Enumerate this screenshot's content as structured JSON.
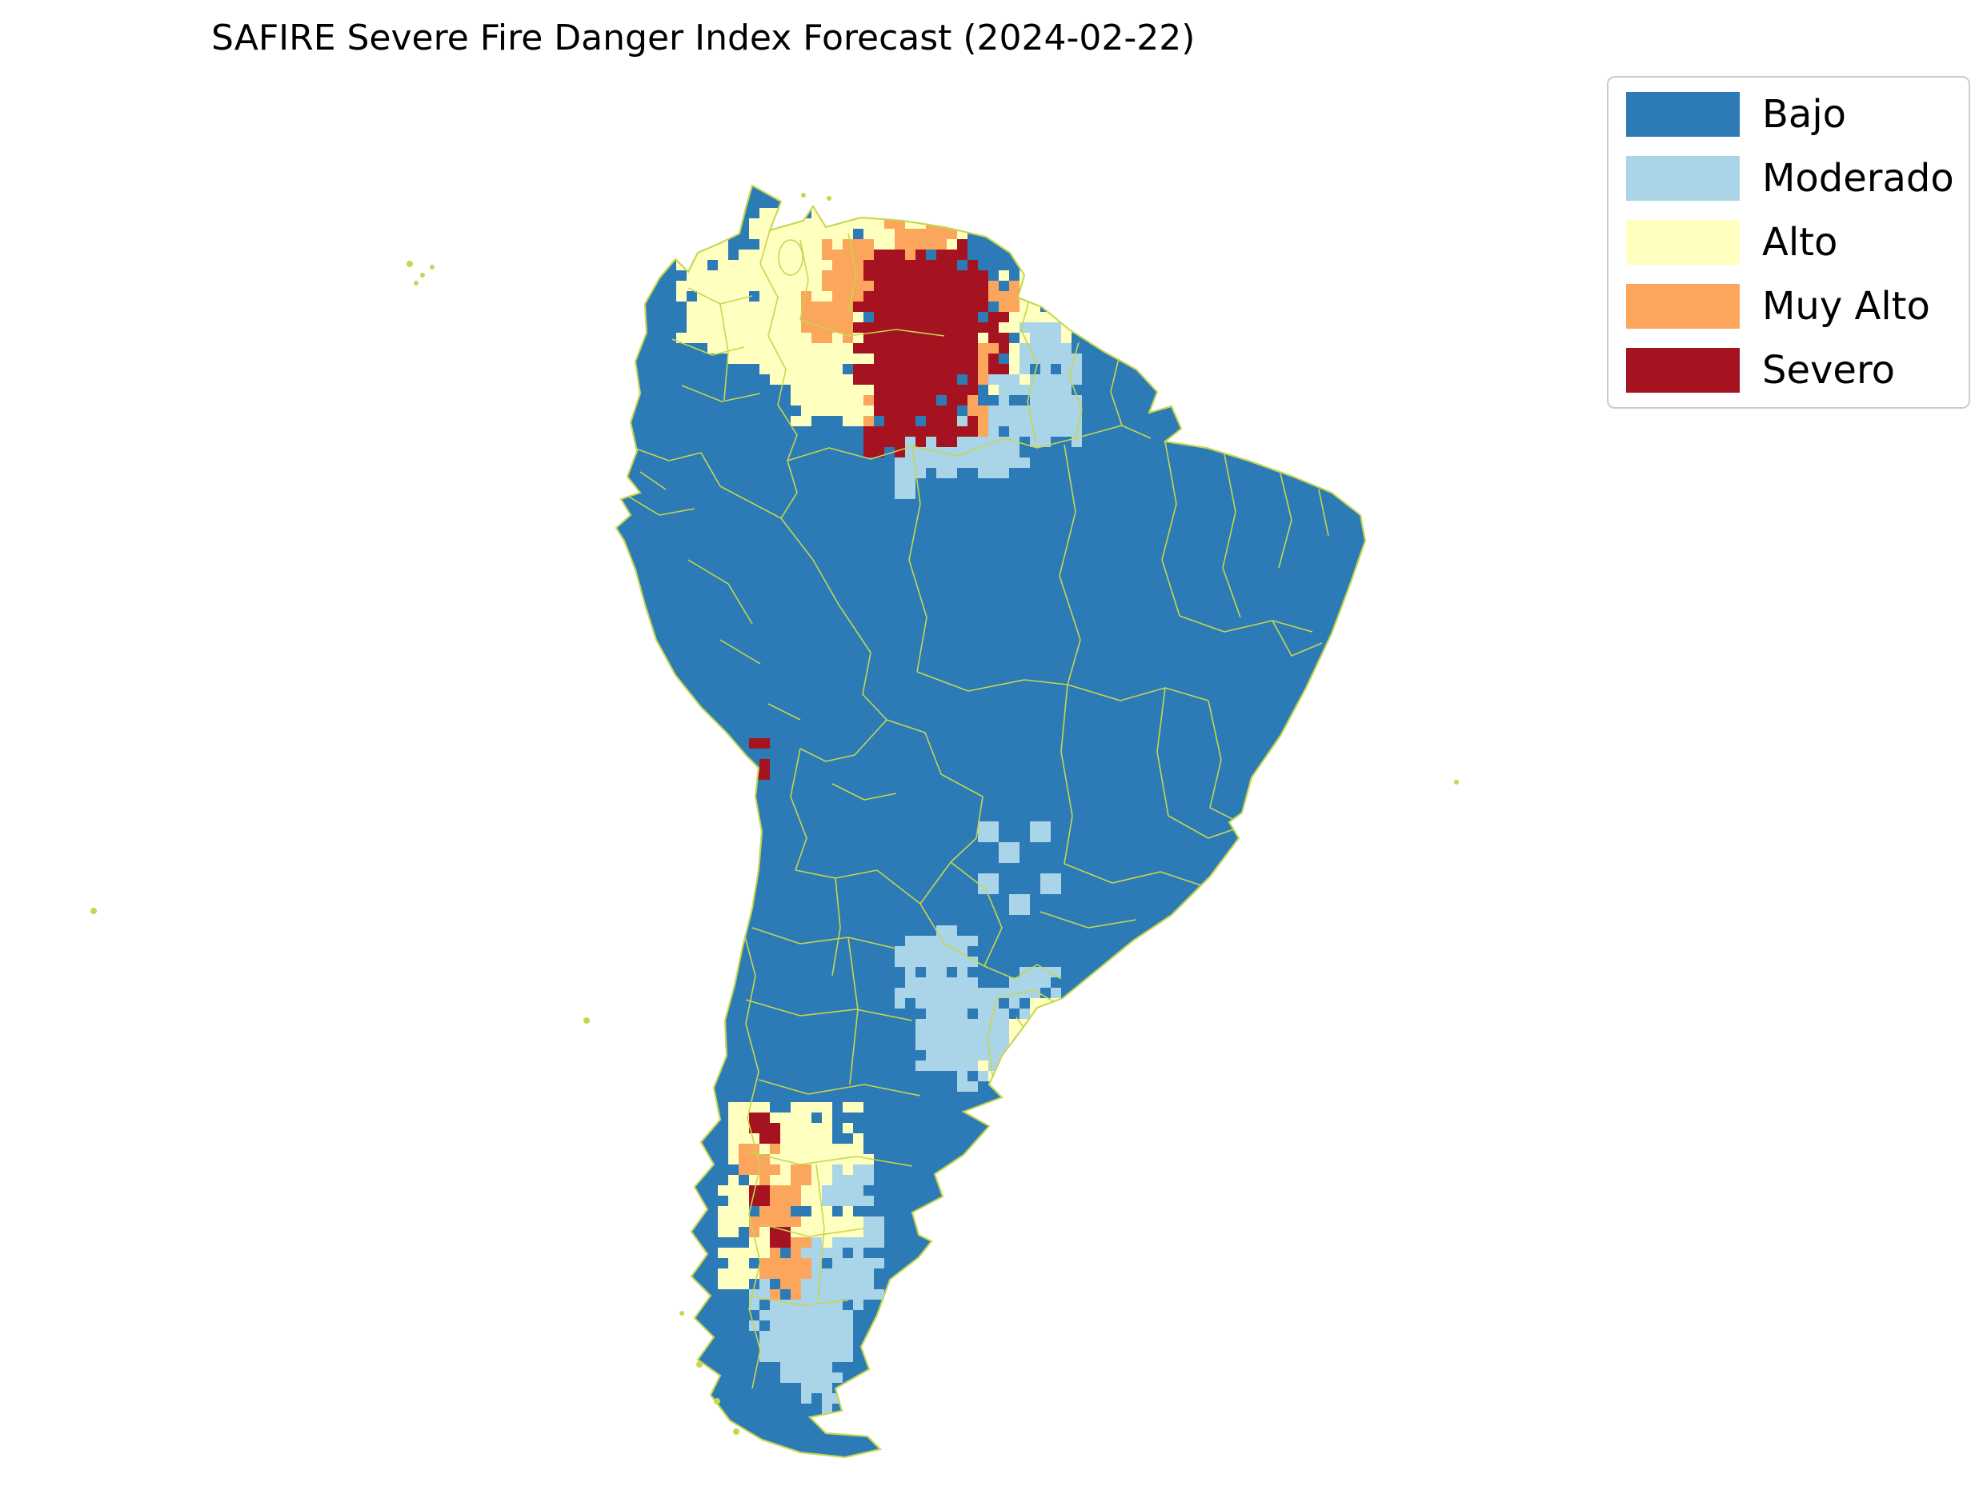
{
  "title": "SAFIRE Severe Fire Danger Index Forecast (2024-02-22)",
  "legend": {
    "items": [
      {
        "key": "bajo",
        "label": "Bajo",
        "color": "#2c7bb6"
      },
      {
        "key": "moderado",
        "label": "Moderado",
        "color": "#aad5e8"
      },
      {
        "key": "alto",
        "label": "Alto",
        "color": "#ffffbf"
      },
      {
        "key": "muy_alto",
        "label": "Muy Alto",
        "color": "#fca55d"
      },
      {
        "key": "severo",
        "label": "Severo",
        "color": "#a61320"
      }
    ]
  },
  "map": {
    "background": "#ffffff",
    "land_color": "#2c7bb6",
    "border_color": "#c6d64f",
    "cell_size": 13,
    "zones": [
      {
        "level": "alto",
        "name": "alto-north-venezuela",
        "rects": [
          [
            884,
            300,
            120,
            150
          ],
          [
            940,
            268,
            180,
            100
          ],
          [
            952,
            352,
            160,
            120
          ],
          [
            988,
            452,
            120,
            70
          ],
          [
            1096,
            270,
            110,
            50
          ],
          [
            848,
            330,
            50,
            90
          ],
          [
            1232,
            396,
            60,
            120
          ],
          [
            1250,
            350,
            50,
            60
          ],
          [
            1300,
            400,
            40,
            50
          ],
          [
            868,
            300,
            30,
            30
          ]
        ]
      },
      {
        "level": "moderado",
        "name": "moderado-north-fringe",
        "rects": [
          [
            1108,
            528,
            170,
            60
          ],
          [
            1240,
            470,
            100,
            80
          ],
          [
            1282,
            408,
            55,
            60
          ],
          [
            1180,
            568,
            80,
            30
          ],
          [
            1320,
            430,
            30,
            40
          ],
          [
            1330,
            380,
            15,
            15
          ],
          [
            1120,
            600,
            15,
            15
          ]
        ]
      },
      {
        "level": "muy_alto",
        "name": "muy-alto-north",
        "rects": [
          [
            1032,
            300,
            90,
            80
          ],
          [
            1008,
            364,
            70,
            60
          ],
          [
            1106,
            282,
            90,
            50
          ],
          [
            1150,
            440,
            80,
            100
          ],
          [
            1196,
            390,
            55,
            70
          ],
          [
            1080,
            470,
            60,
            60
          ],
          [
            1230,
            360,
            40,
            40
          ]
        ]
      },
      {
        "level": "severo",
        "name": "severo-venezuela-blob",
        "rects": [
          [
            1086,
            312,
            120,
            90
          ],
          [
            1066,
            384,
            150,
            110
          ],
          [
            1100,
            478,
            110,
            70
          ],
          [
            1148,
            330,
            80,
            70
          ],
          [
            1208,
            390,
            45,
            45
          ],
          [
            1090,
            542,
            45,
            28
          ],
          [
            1160,
            300,
            40,
            30
          ],
          [
            1240,
            440,
            16,
            16
          ]
        ]
      },
      {
        "level": "severo",
        "name": "severo-peru-coast-speck",
        "rects": [
          [
            940,
            924,
            14,
            44
          ]
        ]
      },
      {
        "level": "moderado",
        "name": "moderado-central-brazil-specks",
        "rects": [
          [
            1232,
            1028,
            14,
            14
          ],
          [
            1258,
            1062,
            14,
            14
          ],
          [
            1290,
            1038,
            14,
            14
          ],
          [
            1222,
            1092,
            14,
            14
          ],
          [
            1306,
            1096,
            14,
            14
          ],
          [
            1272,
            1120,
            14,
            14
          ]
        ]
      },
      {
        "level": "moderado",
        "name": "moderado-pampas-uruguay",
        "rects": [
          [
            1128,
            1182,
            90,
            70
          ],
          [
            1146,
            1240,
            130,
            90
          ],
          [
            1238,
            1266,
            90,
            60
          ],
          [
            1196,
            1316,
            90,
            40
          ],
          [
            1268,
            1212,
            55,
            45
          ],
          [
            1290,
            1300,
            40,
            40
          ],
          [
            1180,
            1160,
            15,
            15
          ]
        ]
      },
      {
        "level": "alto",
        "name": "alto-uruguay-mixed",
        "rects": [
          [
            1252,
            1282,
            55,
            45
          ],
          [
            1222,
            1330,
            55,
            28
          ],
          [
            1290,
            1255,
            30,
            30
          ],
          [
            1265,
            1320,
            16,
            16
          ]
        ]
      },
      {
        "level": "alto",
        "name": "alto-patagonia",
        "rects": [
          [
            912,
            1388,
            120,
            60
          ],
          [
            928,
            1440,
            145,
            80
          ],
          [
            948,
            1512,
            130,
            70
          ],
          [
            976,
            1574,
            90,
            45
          ],
          [
            898,
            1470,
            45,
            70
          ],
          [
            1040,
            1420,
            50,
            40
          ],
          [
            904,
            1560,
            40,
            50
          ],
          [
            1060,
            1390,
            16,
            16
          ]
        ]
      },
      {
        "level": "moderado",
        "name": "moderado-patagonia",
        "rects": [
          [
            1000,
            1556,
            100,
            70
          ],
          [
            956,
            1620,
            110,
            75
          ],
          [
            1030,
            1458,
            60,
            50
          ],
          [
            978,
            1688,
            75,
            40
          ],
          [
            936,
            1600,
            40,
            55
          ],
          [
            1006,
            1728,
            45,
            30
          ],
          [
            1084,
            1530,
            15,
            15
          ]
        ]
      },
      {
        "level": "muy_alto",
        "name": "muy-alto-patagonia",
        "rects": [
          [
            938,
            1478,
            60,
            60
          ],
          [
            952,
            1540,
            50,
            50
          ],
          [
            928,
            1432,
            42,
            42
          ],
          [
            968,
            1588,
            30,
            26
          ],
          [
            990,
            1460,
            15,
            15
          ]
        ]
      },
      {
        "level": "severo",
        "name": "severo-patagonia-specks",
        "rects": [
          [
            936,
            1392,
            14,
            14
          ],
          [
            950,
            1404,
            14,
            14
          ],
          [
            962,
            1538,
            14,
            14
          ],
          [
            944,
            1492,
            14,
            14
          ]
        ]
      }
    ]
  }
}
